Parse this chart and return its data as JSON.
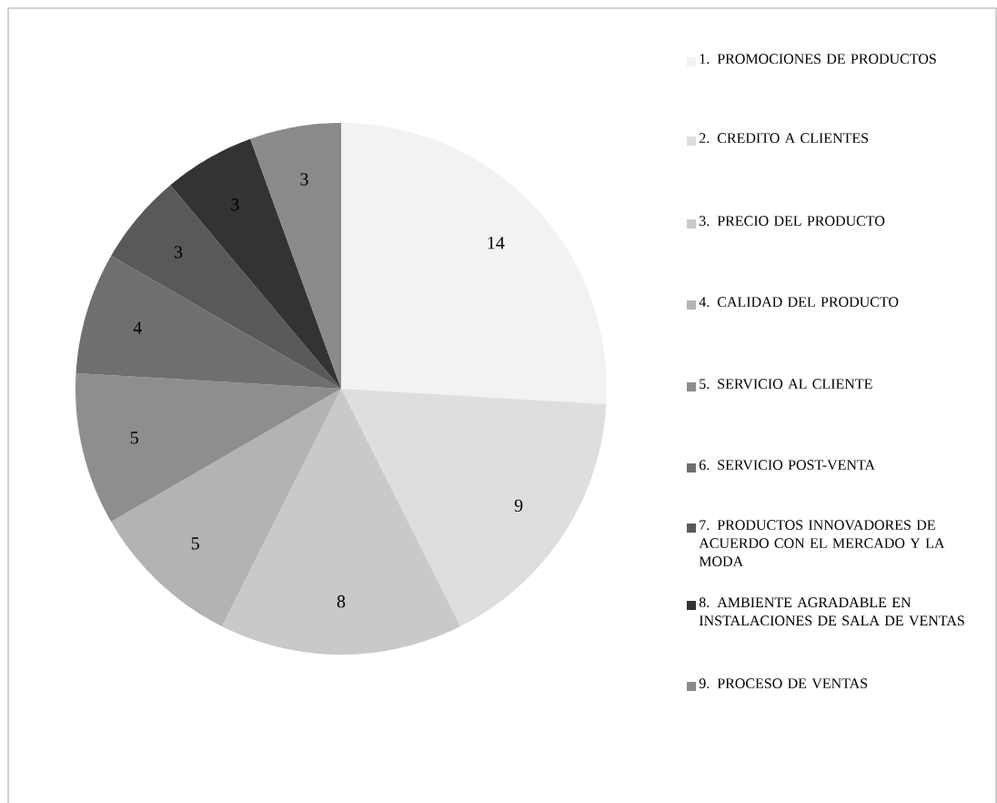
{
  "chart_data": {
    "type": "pie",
    "categories": [
      "1. PROMOCIONES DE PRODUCTOS",
      "2. CREDITO A CLIENTES",
      "3. PRECIO DEL PRODUCTO",
      "4. CALIDAD DEL PRODUCTO",
      "5. SERVICIO AL CLIENTE",
      "6. SERVICIO POST-VENTA",
      "7. PRODUCTOS INNOVADORES DE ACUERDO CON EL MERCADO Y LA MODA",
      "8. AMBIENTE AGRADABLE EN INSTALACIONES DE SALA DE VENTAS",
      "9. PROCESO DE VENTAS"
    ],
    "values": [
      14,
      9,
      8,
      5,
      5,
      4,
      3,
      3,
      3
    ],
    "colors": [
      "#f2f2f2",
      "#dedede",
      "#c9c9c9",
      "#b3b3b3",
      "#8e8e8e",
      "#6f6f6f",
      "#595959",
      "#333333",
      "#8a8a8a"
    ],
    "data_labels": true,
    "legend": "right"
  }
}
